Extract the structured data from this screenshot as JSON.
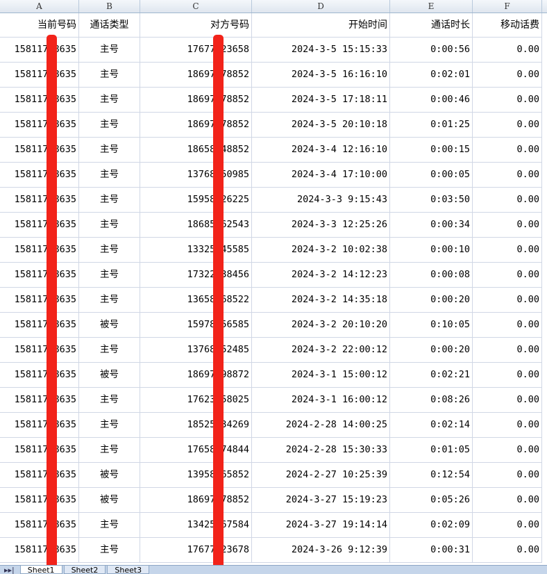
{
  "column_letters": [
    "A",
    "B",
    "C",
    "D",
    "E",
    "F"
  ],
  "headers": [
    "当前号码",
    "通话类型",
    "对方号码",
    "开始时间",
    "通话时长",
    "移动话费"
  ],
  "rows": [
    [
      "15811758635",
      "主号",
      "17677123658",
      "2024-3-5 15:15:33",
      "0:00:56",
      "0.00"
    ],
    [
      "15811758635",
      "主号",
      "18697378852",
      "2024-3-5 16:16:10",
      "0:02:01",
      "0.00"
    ],
    [
      "15811758635",
      "主号",
      "18697378852",
      "2024-3-5 17:18:11",
      "0:00:46",
      "0.00"
    ],
    [
      "15811758635",
      "主号",
      "18697378852",
      "2024-3-5 20:10:18",
      "0:01:25",
      "0.00"
    ],
    [
      "15811758635",
      "主号",
      "18658848852",
      "2024-3-4 12:16:10",
      "0:00:15",
      "0.00"
    ],
    [
      "15811758635",
      "主号",
      "13768250985",
      "2024-3-4 17:10:00",
      "0:00:05",
      "0.00"
    ],
    [
      "15811758635",
      "主号",
      "15958426225",
      "2024-3-3 9:15:43",
      "0:03:50",
      "0.00"
    ],
    [
      "15811758635",
      "主号",
      "18685562543",
      "2024-3-3 12:25:26",
      "0:00:34",
      "0.00"
    ],
    [
      "15811758635",
      "主号",
      "13325545585",
      "2024-3-2 10:02:38",
      "0:00:10",
      "0.00"
    ],
    [
      "15811758635",
      "主号",
      "17322838456",
      "2024-3-2 14:12:23",
      "0:00:08",
      "0.00"
    ],
    [
      "15811758635",
      "主号",
      "13658568522",
      "2024-3-2 14:35:18",
      "0:00:20",
      "0.00"
    ],
    [
      "15811758635",
      "被号",
      "15978156585",
      "2024-3-2 20:10:20",
      "0:10:05",
      "0.00"
    ],
    [
      "15811758635",
      "主号",
      "13768252485",
      "2024-3-2 22:00:12",
      "0:00:20",
      "0.00"
    ],
    [
      "15811758635",
      "被号",
      "18697898872",
      "2024-3-1 15:00:12",
      "0:02:21",
      "0.00"
    ],
    [
      "15811758635",
      "主号",
      "17623558025",
      "2024-3-1 16:00:12",
      "0:08:26",
      "0.00"
    ],
    [
      "15811758635",
      "主号",
      "18525534269",
      "2024-2-28 14:00:25",
      "0:02:14",
      "0.00"
    ],
    [
      "15811758635",
      "主号",
      "17658474844",
      "2024-2-28 15:30:33",
      "0:01:05",
      "0.00"
    ],
    [
      "15811758635",
      "被号",
      "13958265852",
      "2024-2-27 10:25:39",
      "0:12:54",
      "0.00"
    ],
    [
      "15811758635",
      "被号",
      "18697378852",
      "2024-3-27 15:19:23",
      "0:05:26",
      "0.00"
    ],
    [
      "15811758635",
      "主号",
      "13425567584",
      "2024-3-27 19:14:14",
      "0:02:09",
      "0.00"
    ],
    [
      "15811758635",
      "主号",
      "17677123678",
      "2024-3-26 9:12:39",
      "0:00:31",
      "0.00"
    ]
  ],
  "sheet_tabs": [
    "Sheet1",
    "Sheet2",
    "Sheet3"
  ],
  "annotation_color": "#f2231a"
}
